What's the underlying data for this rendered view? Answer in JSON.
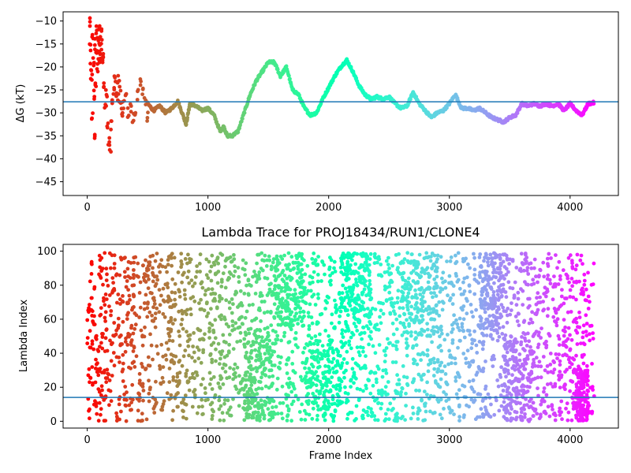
{
  "chart_data": [
    {
      "type": "scatter",
      "title": "",
      "xlabel": "",
      "ylabel": "ΔG (kT)",
      "xlim": [
        -200,
        4400
      ],
      "ylim": [
        -48,
        -8
      ],
      "xticks": [
        0,
        1000,
        2000,
        3000,
        4000
      ],
      "xtick_labels": [
        "0",
        "1000",
        "2000",
        "3000",
        "4000"
      ],
      "yticks": [
        -45,
        -40,
        -35,
        -30,
        -25,
        -20,
        -15,
        -10
      ],
      "ytick_labels": [
        "−45",
        "−40",
        "−35",
        "−30",
        "−25",
        "−20",
        "−15",
        "−10"
      ],
      "hline": -27.6,
      "hline_color": "#1f77b4",
      "colormap": "rainbow (red at low frame index → violet at high frame index)",
      "x_range": [
        0,
        4200
      ],
      "early_scatter": [
        {
          "x": 20,
          "y": -10.6
        },
        {
          "x": 25,
          "y": -16
        },
        {
          "x": 30,
          "y": -20
        },
        {
          "x": 35,
          "y": -22.5
        },
        {
          "x": 40,
          "y": -31
        },
        {
          "x": 45,
          "y": -13
        },
        {
          "x": 50,
          "y": -19
        },
        {
          "x": 55,
          "y": -26
        },
        {
          "x": 60,
          "y": -34.5
        },
        {
          "x": 65,
          "y": -15
        },
        {
          "x": 70,
          "y": -23
        },
        {
          "x": 75,
          "y": -12
        },
        {
          "x": 80,
          "y": -17
        },
        {
          "x": 85,
          "y": -20.5
        },
        {
          "x": 90,
          "y": -14
        },
        {
          "x": 95,
          "y": -19
        },
        {
          "x": 100,
          "y": -12
        },
        {
          "x": 105,
          "y": -16
        },
        {
          "x": 110,
          "y": -18
        },
        {
          "x": 115,
          "y": -13
        },
        {
          "x": 120,
          "y": -15
        },
        {
          "x": 125,
          "y": -19
        },
        {
          "x": 130,
          "y": -17
        },
        {
          "x": 140,
          "y": -24
        },
        {
          "x": 150,
          "y": -29
        },
        {
          "x": 160,
          "y": -26
        },
        {
          "x": 170,
          "y": -32
        },
        {
          "x": 180,
          "y": -36
        },
        {
          "x": 190,
          "y": -38
        },
        {
          "x": 200,
          "y": -33
        },
        {
          "x": 210,
          "y": -28
        },
        {
          "x": 220,
          "y": -25
        },
        {
          "x": 230,
          "y": -22
        },
        {
          "x": 240,
          "y": -26
        },
        {
          "x": 250,
          "y": -23
        },
        {
          "x": 260,
          "y": -27
        },
        {
          "x": 270,
          "y": -24
        },
        {
          "x": 280,
          "y": -29
        },
        {
          "x": 290,
          "y": -31
        },
        {
          "x": 300,
          "y": -28
        },
        {
          "x": 320,
          "y": -27
        },
        {
          "x": 340,
          "y": -30
        },
        {
          "x": 360,
          "y": -29
        },
        {
          "x": 380,
          "y": -31
        },
        {
          "x": 400,
          "y": -30
        },
        {
          "x": 420,
          "y": -26
        },
        {
          "x": 440,
          "y": -23
        },
        {
          "x": 460,
          "y": -25
        },
        {
          "x": 480,
          "y": -28
        },
        {
          "x": 500,
          "y": -31
        }
      ],
      "trace": [
        {
          "x": 500,
          "y": -28
        },
        {
          "x": 550,
          "y": -29.5
        },
        {
          "x": 600,
          "y": -28.5
        },
        {
          "x": 650,
          "y": -30
        },
        {
          "x": 700,
          "y": -29
        },
        {
          "x": 750,
          "y": -27.5
        },
        {
          "x": 800,
          "y": -31
        },
        {
          "x": 820,
          "y": -32.5
        },
        {
          "x": 850,
          "y": -28
        },
        {
          "x": 900,
          "y": -28.5
        },
        {
          "x": 950,
          "y": -29.5
        },
        {
          "x": 1000,
          "y": -29
        },
        {
          "x": 1050,
          "y": -30.5
        },
        {
          "x": 1100,
          "y": -34
        },
        {
          "x": 1130,
          "y": -33
        },
        {
          "x": 1160,
          "y": -35
        },
        {
          "x": 1200,
          "y": -35
        },
        {
          "x": 1250,
          "y": -34
        },
        {
          "x": 1300,
          "y": -30
        },
        {
          "x": 1350,
          "y": -26
        },
        {
          "x": 1400,
          "y": -23
        },
        {
          "x": 1450,
          "y": -21
        },
        {
          "x": 1500,
          "y": -19
        },
        {
          "x": 1550,
          "y": -19
        },
        {
          "x": 1600,
          "y": -22
        },
        {
          "x": 1650,
          "y": -20
        },
        {
          "x": 1700,
          "y": -25
        },
        {
          "x": 1750,
          "y": -26
        },
        {
          "x": 1800,
          "y": -29
        },
        {
          "x": 1850,
          "y": -30.5
        },
        {
          "x": 1900,
          "y": -30
        },
        {
          "x": 1950,
          "y": -27
        },
        {
          "x": 2000,
          "y": -24.5
        },
        {
          "x": 2050,
          "y": -22
        },
        {
          "x": 2100,
          "y": -20
        },
        {
          "x": 2150,
          "y": -18.5
        },
        {
          "x": 2200,
          "y": -21
        },
        {
          "x": 2250,
          "y": -24
        },
        {
          "x": 2300,
          "y": -26
        },
        {
          "x": 2350,
          "y": -27
        },
        {
          "x": 2400,
          "y": -26.5
        },
        {
          "x": 2450,
          "y": -27
        },
        {
          "x": 2500,
          "y": -26.5
        },
        {
          "x": 2550,
          "y": -28
        },
        {
          "x": 2600,
          "y": -29
        },
        {
          "x": 2650,
          "y": -28.5
        },
        {
          "x": 2700,
          "y": -25.5
        },
        {
          "x": 2750,
          "y": -28
        },
        {
          "x": 2800,
          "y": -29.5
        },
        {
          "x": 2850,
          "y": -31
        },
        {
          "x": 2900,
          "y": -30
        },
        {
          "x": 2950,
          "y": -29.5
        },
        {
          "x": 3000,
          "y": -28
        },
        {
          "x": 3050,
          "y": -26
        },
        {
          "x": 3100,
          "y": -29
        },
        {
          "x": 3150,
          "y": -29
        },
        {
          "x": 3200,
          "y": -29.5
        },
        {
          "x": 3250,
          "y": -29
        },
        {
          "x": 3300,
          "y": -30
        },
        {
          "x": 3350,
          "y": -31
        },
        {
          "x": 3400,
          "y": -31.5
        },
        {
          "x": 3450,
          "y": -32
        },
        {
          "x": 3500,
          "y": -31
        },
        {
          "x": 3550,
          "y": -30.5
        },
        {
          "x": 3600,
          "y": -28
        },
        {
          "x": 3650,
          "y": -28.5
        },
        {
          "x": 3700,
          "y": -28
        },
        {
          "x": 3750,
          "y": -28.5
        },
        {
          "x": 3800,
          "y": -28
        },
        {
          "x": 3850,
          "y": -28.5
        },
        {
          "x": 3900,
          "y": -28
        },
        {
          "x": 3950,
          "y": -29.5
        },
        {
          "x": 4000,
          "y": -28
        },
        {
          "x": 4050,
          "y": -29.5
        },
        {
          "x": 4100,
          "y": -30.5
        },
        {
          "x": 4150,
          "y": -28
        },
        {
          "x": 4200,
          "y": -27.8
        }
      ]
    },
    {
      "type": "scatter",
      "title": "Lambda Trace for PROJ18434/RUN1/CLONE4",
      "xlabel": "Frame Index",
      "ylabel": "Lambda Index",
      "xlim": [
        -200,
        4400
      ],
      "ylim": [
        -4,
        104
      ],
      "xticks": [
        0,
        1000,
        2000,
        3000,
        4000
      ],
      "xtick_labels": [
        "0",
        "1000",
        "2000",
        "3000",
        "4000"
      ],
      "yticks": [
        0,
        20,
        40,
        60,
        80,
        100
      ],
      "ytick_labels": [
        "0",
        "20",
        "40",
        "60",
        "80",
        "100"
      ],
      "hline": 14,
      "hline_color": "#1f77b4",
      "colormap": "rainbow (red at low frame index → violet at high frame index)",
      "x_range": [
        0,
        4200
      ],
      "y_range": [
        0,
        99
      ],
      "dense_bands": [
        {
          "x_from": 1300,
          "x_to": 1550,
          "y_from": 0,
          "y_to": 55
        },
        {
          "x_from": 1550,
          "x_to": 1800,
          "y_from": 55,
          "y_to": 99
        },
        {
          "x_from": 1800,
          "x_to": 2100,
          "y_from": 0,
          "y_to": 50
        },
        {
          "x_from": 2100,
          "x_to": 2350,
          "y_from": 50,
          "y_to": 99
        },
        {
          "x_from": 2600,
          "x_to": 2900,
          "y_from": 50,
          "y_to": 99
        },
        {
          "x_from": 3250,
          "x_to": 3450,
          "y_from": 50,
          "y_to": 99
        },
        {
          "x_from": 3450,
          "x_to": 3700,
          "y_from": 0,
          "y_to": 50
        },
        {
          "x_from": 4050,
          "x_to": 4150,
          "y_from": 0,
          "y_to": 30
        }
      ]
    }
  ]
}
